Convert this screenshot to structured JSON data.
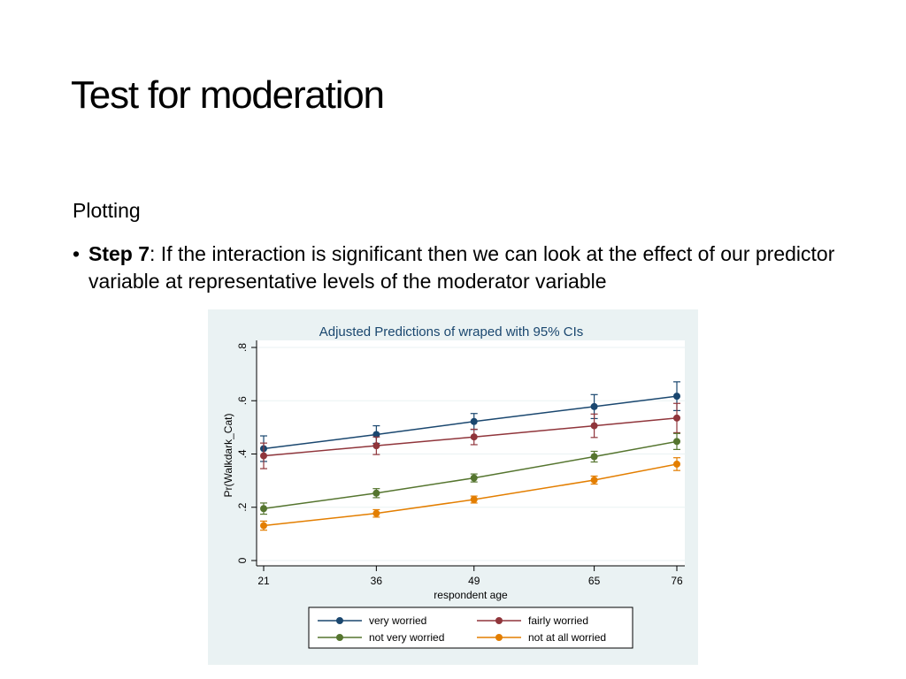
{
  "slide": {
    "title": "Test for moderation",
    "section_label": "Plotting",
    "bullet": {
      "marker": "•",
      "bold_part": "Step 7",
      "rest": ": If the interaction is significant then we can look at the effect of our predictor variable at representative levels of the moderator variable"
    }
  },
  "chart_data": {
    "type": "line",
    "title": "Adjusted Predictions of wraped with 95% CIs",
    "xlabel": "respondent age",
    "ylabel": "Pr(Walkdark_Cat)",
    "x": [
      21,
      36,
      49,
      65,
      76
    ],
    "xticks": [
      "21",
      "36",
      "49",
      "65",
      "76"
    ],
    "ylim": [
      0,
      0.8
    ],
    "yticks": [
      0,
      0.2,
      0.4,
      0.6,
      0.8
    ],
    "ytick_labels": [
      "0",
      ".2",
      ".4",
      ".6",
      ".8"
    ],
    "grid": true,
    "legend_position": "bottom",
    "series": [
      {
        "name": "very worried",
        "color": "#1a476f",
        "values": [
          0.42,
          0.473,
          0.522,
          0.578,
          0.617
        ],
        "lower": [
          0.372,
          0.44,
          0.492,
          0.533,
          0.563
        ],
        "upper": [
          0.468,
          0.506,
          0.552,
          0.623,
          0.671
        ]
      },
      {
        "name": "fairly worried",
        "color": "#90353b",
        "values": [
          0.393,
          0.431,
          0.464,
          0.506,
          0.535
        ],
        "lower": [
          0.345,
          0.398,
          0.435,
          0.462,
          0.48
        ],
        "upper": [
          0.441,
          0.464,
          0.493,
          0.55,
          0.59
        ]
      },
      {
        "name": "not very worried",
        "color": "#55752f",
        "values": [
          0.195,
          0.253,
          0.31,
          0.39,
          0.447
        ],
        "lower": [
          0.174,
          0.236,
          0.295,
          0.37,
          0.417
        ],
        "upper": [
          0.216,
          0.27,
          0.325,
          0.41,
          0.477
        ]
      },
      {
        "name": "not at all worried",
        "color": "#e37e00",
        "values": [
          0.131,
          0.177,
          0.229,
          0.302,
          0.362
        ],
        "lower": [
          0.114,
          0.163,
          0.216,
          0.287,
          0.338
        ],
        "upper": [
          0.148,
          0.191,
          0.242,
          0.317,
          0.386
        ]
      }
    ]
  }
}
